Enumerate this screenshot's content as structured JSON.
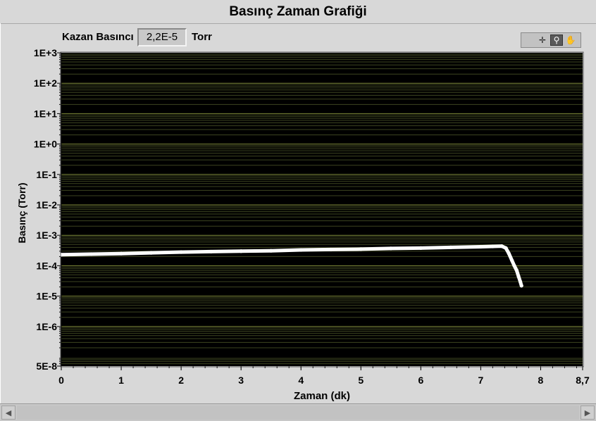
{
  "window": {
    "title": "Basınç Zaman Grafiği"
  },
  "indicator": {
    "label": "Kazan Basıncı",
    "value": "2,2E-5",
    "unit": "Torr"
  },
  "toolbar": {
    "tools": [
      {
        "name": "cursor-move-icon",
        "glyph": "✛",
        "active": false
      },
      {
        "name": "zoom-icon",
        "glyph": "⚲",
        "active": true
      },
      {
        "name": "pan-hand-icon",
        "glyph": "✋",
        "active": false
      }
    ]
  },
  "chart_data": {
    "type": "line",
    "title": "Basınç Zaman Grafiği",
    "xlabel": "Zaman (dk)",
    "ylabel": "Basınç (Torr)",
    "xlim": [
      0,
      8.7
    ],
    "ylim": [
      5e-08,
      1000
    ],
    "yscale": "log",
    "grid": true,
    "legend": "none",
    "colors": {
      "background": "#000000",
      "series": "#ffffff",
      "grid": "#7f8a3a",
      "minor_grid": "#3d4420"
    },
    "x_ticks": [
      {
        "value": 0,
        "label": "0"
      },
      {
        "value": 1,
        "label": "1"
      },
      {
        "value": 2,
        "label": "2"
      },
      {
        "value": 3,
        "label": "3"
      },
      {
        "value": 4,
        "label": "4"
      },
      {
        "value": 5,
        "label": "5"
      },
      {
        "value": 6,
        "label": "6"
      },
      {
        "value": 7,
        "label": "7"
      },
      {
        "value": 8,
        "label": "8"
      },
      {
        "value": 8.7,
        "label": "8,7"
      }
    ],
    "y_ticks": [
      {
        "value": 1000,
        "label": "1E+3"
      },
      {
        "value": 100,
        "label": "1E+2"
      },
      {
        "value": 10,
        "label": "1E+1"
      },
      {
        "value": 1,
        "label": "1E+0"
      },
      {
        "value": 0.1,
        "label": "1E-1"
      },
      {
        "value": 0.01,
        "label": "1E-2"
      },
      {
        "value": 0.001,
        "label": "1E-3"
      },
      {
        "value": 0.0001,
        "label": "1E-4"
      },
      {
        "value": 1e-05,
        "label": "1E-5"
      },
      {
        "value": 1e-06,
        "label": "1E-6"
      },
      {
        "value": 5e-08,
        "label": "5E-8"
      }
    ],
    "series": [
      {
        "x": [
          0,
          0.5,
          1,
          1.5,
          2,
          2.5,
          3,
          3.5,
          4,
          4.5,
          5,
          5.5,
          6,
          6.5,
          7,
          7.2,
          7.35,
          7.42,
          7.47,
          7.52,
          7.56,
          7.6,
          7.63,
          7.66,
          7.68
        ],
        "y": [
          0.00023,
          0.00024,
          0.00025,
          0.000265,
          0.00028,
          0.00029,
          0.0003,
          0.00031,
          0.00033,
          0.00034,
          0.00035,
          0.00037,
          0.00038,
          0.0004,
          0.00042,
          0.00043,
          0.00044,
          0.00038,
          0.00025,
          0.00015,
          0.0001,
          7e-05,
          4.5e-05,
          3e-05,
          2.2e-05
        ]
      }
    ]
  }
}
